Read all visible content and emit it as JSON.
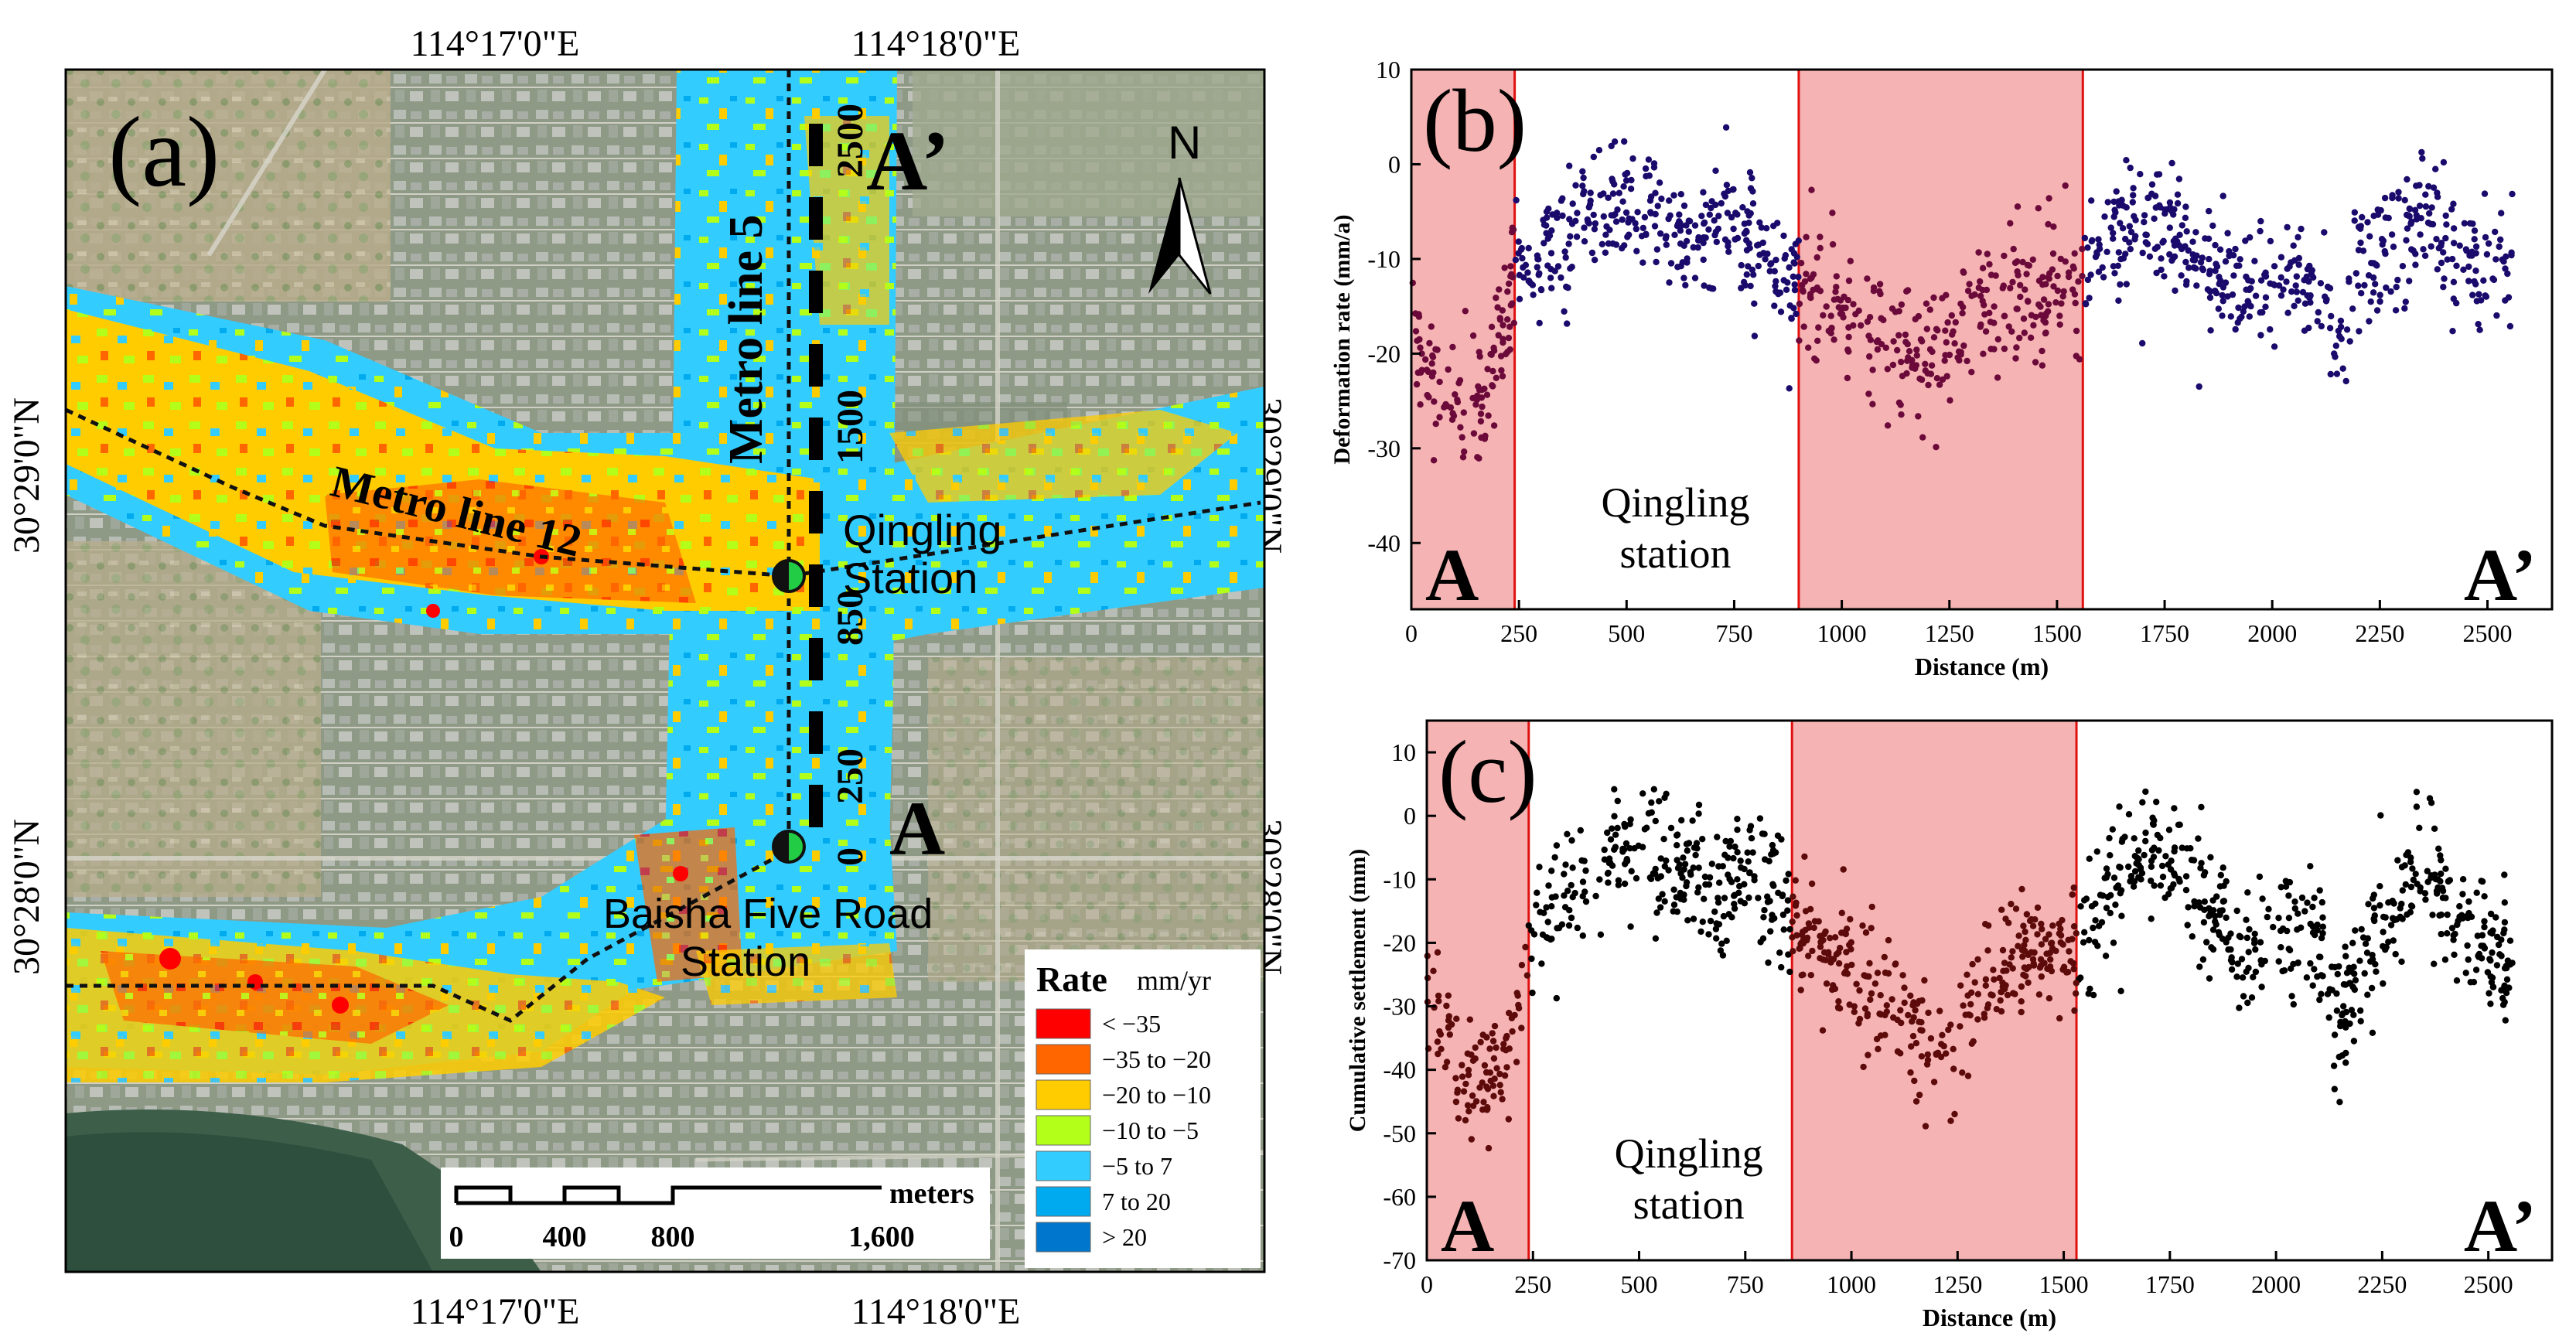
{
  "map": {
    "panel_label": "(a)",
    "lon_labels": [
      "114°17'0\"E",
      "114°18'0\"E"
    ],
    "lat_labels": [
      "30°29'0\"N",
      "30°28'0\"N"
    ],
    "north_label": "N",
    "metro5_label": "Metro line 5",
    "metro12_label": "Metro line 12",
    "qingling_label": "Qingling Station",
    "baisha_label": "Baisha Five Road Station",
    "profile_start": "A",
    "profile_end": "A’",
    "distance_ticks": [
      "2500",
      "1500",
      "850",
      "250",
      "0"
    ],
    "scale": {
      "unit": "meters",
      "ticks": [
        "0",
        "400",
        "800",
        "1,600"
      ]
    },
    "legend": {
      "title": "Rate",
      "unit": "mm/yr",
      "classes": [
        {
          "label": "< −35",
          "color": "#ff0000"
        },
        {
          "label": "−35  to −20",
          "color": "#ff6600"
        },
        {
          "label": "−20  to −10",
          "color": "#ffcc00"
        },
        {
          "label": "−10  to −5",
          "color": "#b3ff1a"
        },
        {
          "label": "−5  to 7",
          "color": "#33ccff"
        },
        {
          "label": "7  to 20",
          "color": "#00aaee"
        },
        {
          "label": "> 20",
          "color": "#0077cc"
        }
      ]
    }
  },
  "chart_data": [
    {
      "panel": "(b)",
      "type": "scatter",
      "xlabel": "Distance (m)",
      "ylabel": "Deformation rate (mm/a)",
      "xlim": [
        0,
        2650
      ],
      "ylim": [
        -47,
        10
      ],
      "xticks": [
        0,
        250,
        500,
        750,
        1000,
        1250,
        1500,
        1750,
        2000,
        2250,
        2500
      ],
      "yticks": [
        -40,
        -30,
        -20,
        -10,
        0,
        10
      ],
      "point_color": "#1a0a6b",
      "highlight_color": "#6b0a3a",
      "highlight_regions": [
        [
          0,
          240
        ],
        [
          900,
          1560
        ]
      ],
      "annotations": {
        "start": "A",
        "end": "A’",
        "station": "Qingling station"
      },
      "profile": [
        [
          0,
          -18
        ],
        [
          50,
          -22
        ],
        [
          120,
          -27
        ],
        [
          180,
          -25
        ],
        [
          240,
          -12
        ],
        [
          300,
          -10
        ],
        [
          400,
          -5
        ],
        [
          480,
          -3
        ],
        [
          560,
          -5
        ],
        [
          650,
          -8
        ],
        [
          750,
          -6
        ],
        [
          820,
          -9
        ],
        [
          880,
          -11
        ],
        [
          940,
          -13
        ],
        [
          1000,
          -15
        ],
        [
          1080,
          -18
        ],
        [
          1150,
          -20
        ],
        [
          1220,
          -21
        ],
        [
          1250,
          -19
        ],
        [
          1300,
          -15
        ],
        [
          1380,
          -14
        ],
        [
          1450,
          -14
        ],
        [
          1560,
          -12
        ],
        [
          1620,
          -8
        ],
        [
          1700,
          -5
        ],
        [
          1780,
          -8
        ],
        [
          1850,
          -11
        ],
        [
          1950,
          -13
        ],
        [
          2050,
          -12
        ],
        [
          2120,
          -15
        ],
        [
          2150,
          -20
        ],
        [
          2200,
          -12
        ],
        [
          2280,
          -8
        ],
        [
          2350,
          -5
        ],
        [
          2420,
          -9
        ],
        [
          2500,
          -11
        ],
        [
          2560,
          -10
        ]
      ],
      "spread": 6,
      "sample_points": 1200
    },
    {
      "panel": "(c)",
      "type": "scatter",
      "xlabel": "Distance (m)",
      "ylabel": "Cumulative settlement (mm)",
      "xlim": [
        0,
        2650
      ],
      "ylim": [
        -70,
        15
      ],
      "xticks": [
        0,
        250,
        500,
        750,
        1000,
        1250,
        1500,
        1750,
        2000,
        2250,
        2500
      ],
      "yticks": [
        -70,
        -60,
        -50,
        -40,
        -30,
        -20,
        -10,
        0,
        10
      ],
      "point_color": "#000000",
      "highlight_color": "#5c0a0a",
      "highlight_regions": [
        [
          0,
          240
        ],
        [
          860,
          1530
        ]
      ],
      "annotations": {
        "start": "A",
        "end": "A’",
        "station": "Qingling station"
      },
      "profile": [
        [
          0,
          -28
        ],
        [
          50,
          -35
        ],
        [
          120,
          -42
        ],
        [
          180,
          -40
        ],
        [
          240,
          -22
        ],
        [
          300,
          -15
        ],
        [
          400,
          -7
        ],
        [
          480,
          -4
        ],
        [
          560,
          -8
        ],
        [
          650,
          -12
        ],
        [
          750,
          -10
        ],
        [
          820,
          -14
        ],
        [
          880,
          -18
        ],
        [
          950,
          -22
        ],
        [
          1020,
          -26
        ],
        [
          1100,
          -30
        ],
        [
          1180,
          -35
        ],
        [
          1250,
          -38
        ],
        [
          1300,
          -28
        ],
        [
          1380,
          -22
        ],
        [
          1450,
          -22
        ],
        [
          1530,
          -20
        ],
        [
          1600,
          -12
        ],
        [
          1700,
          -6
        ],
        [
          1780,
          -10
        ],
        [
          1850,
          -16
        ],
        [
          1950,
          -20
        ],
        [
          2050,
          -18
        ],
        [
          2120,
          -24
        ],
        [
          2150,
          -34
        ],
        [
          2200,
          -22
        ],
        [
          2280,
          -14
        ],
        [
          2350,
          -8
        ],
        [
          2420,
          -16
        ],
        [
          2500,
          -22
        ],
        [
          2560,
          -22
        ]
      ],
      "spread": 9,
      "sample_points": 1200
    }
  ]
}
